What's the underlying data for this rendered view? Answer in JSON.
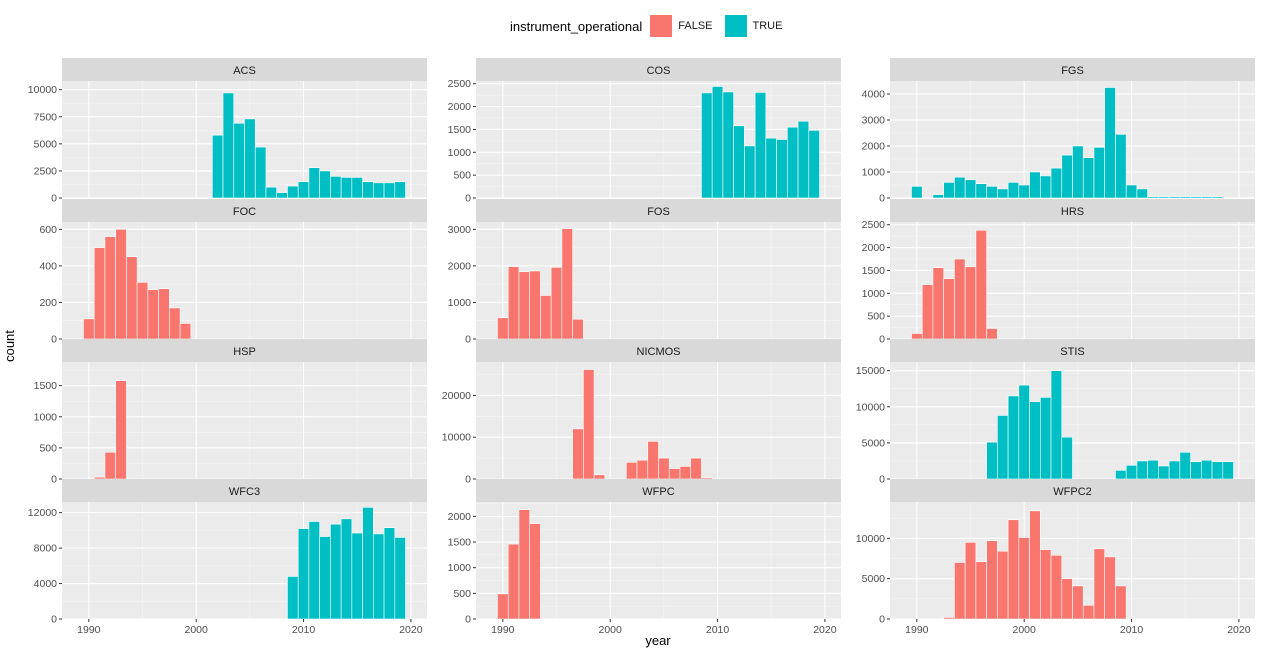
{
  "legend": {
    "title": "instrument_operational",
    "items": [
      {
        "label": "FALSE",
        "color": "#F8766D"
      },
      {
        "label": "TRUE",
        "color": "#00BFC4"
      }
    ]
  },
  "chart_data": {
    "type": "bar",
    "xlabel": "year",
    "ylabel": "count",
    "x_ticks": [
      1990,
      2000,
      2010,
      2020
    ],
    "xlim": [
      1987.5,
      2021.5
    ],
    "panels": [
      {
        "name": "ACS",
        "color": "#00BFC4",
        "ymax": 10800,
        "yticks": [
          0,
          2500,
          5000,
          7500,
          10000
        ],
        "ytick_labels": [
          "0",
          "2500",
          "5000",
          "7500",
          "10000"
        ],
        "x": [
          2002,
          2003,
          2004,
          2005,
          2006,
          2007,
          2008,
          2009,
          2010,
          2011,
          2012,
          2013,
          2014,
          2015,
          2016,
          2017,
          2018,
          2019
        ],
        "y": [
          5800,
          9700,
          6900,
          7300,
          4700,
          1000,
          500,
          1100,
          1500,
          2800,
          2500,
          2000,
          1900,
          1900,
          1500,
          1400,
          1400,
          1500
        ]
      },
      {
        "name": "COS",
        "color": "#00BFC4",
        "ymax": 2560,
        "yticks": [
          0,
          500,
          1000,
          1500,
          2000,
          2500
        ],
        "ytick_labels": [
          "0",
          "500",
          "1000",
          "1500",
          "2000",
          "2500"
        ],
        "x": [
          2009,
          2010,
          2011,
          2012,
          2013,
          2014,
          2015,
          2016,
          2017,
          2018,
          2019
        ],
        "y": [
          2300,
          2440,
          2320,
          1580,
          1140,
          2310,
          1310,
          1280,
          1550,
          1680,
          1480
        ]
      },
      {
        "name": "FGS",
        "color": "#00BFC4",
        "ymax": 4500,
        "yticks": [
          0,
          1000,
          2000,
          3000,
          4000
        ],
        "ytick_labels": [
          "0",
          "1000",
          "2000",
          "3000",
          "4000"
        ],
        "x": [
          1990,
          1992,
          1993,
          1994,
          1995,
          1996,
          1997,
          1998,
          1999,
          2000,
          2001,
          2002,
          2003,
          2004,
          2005,
          2006,
          2007,
          2008,
          2009,
          2010,
          2011,
          2012,
          2013,
          2014,
          2015,
          2016,
          2017,
          2018
        ],
        "y": [
          450,
          130,
          600,
          800,
          700,
          550,
          450,
          350,
          600,
          500,
          1000,
          850,
          1150,
          1650,
          2000,
          1550,
          1950,
          4250,
          2450,
          500,
          350,
          50,
          50,
          50,
          50,
          50,
          50,
          50
        ]
      },
      {
        "name": "FOC",
        "color": "#F8766D",
        "ymax": 640,
        "yticks": [
          0,
          200,
          400,
          600
        ],
        "ytick_labels": [
          "0",
          "200",
          "400",
          "600"
        ],
        "x": [
          1990,
          1991,
          1992,
          1993,
          1994,
          1995,
          1996,
          1997,
          1998,
          1999
        ],
        "y": [
          110,
          500,
          560,
          600,
          450,
          310,
          270,
          275,
          170,
          85
        ]
      },
      {
        "name": "FOS",
        "color": "#F8766D",
        "ymax": 3200,
        "yticks": [
          0,
          1000,
          2000,
          3000
        ],
        "ytick_labels": [
          "0",
          "1000",
          "2000",
          "3000"
        ],
        "x": [
          1990,
          1991,
          1992,
          1993,
          1994,
          1995,
          1996,
          1997
        ],
        "y": [
          580,
          1980,
          1840,
          1860,
          1190,
          1960,
          3020,
          540
        ]
      },
      {
        "name": "HRS",
        "color": "#F8766D",
        "ymax": 2560,
        "yticks": [
          0,
          500,
          1000,
          1500,
          2000,
          2500
        ],
        "ytick_labels": [
          "0",
          "500",
          "1000",
          "1500",
          "2000",
          "2500"
        ],
        "x": [
          1990,
          1991,
          1992,
          1993,
          1994,
          1995,
          1996,
          1997
        ],
        "y": [
          120,
          1190,
          1560,
          1320,
          1750,
          1580,
          2380,
          230
        ]
      },
      {
        "name": "HSP",
        "color": "#F8766D",
        "ymax": 1880,
        "yticks": [
          0,
          500,
          1000,
          1500
        ],
        "ytick_labels": [
          "0",
          "500",
          "1000",
          "1500"
        ],
        "x": [
          1991,
          1992,
          1993
        ],
        "y": [
          30,
          430,
          1580
        ]
      },
      {
        "name": "NICMOS",
        "color": "#F8766D",
        "ymax": 28000,
        "yticks": [
          0,
          10000,
          20000
        ],
        "ytick_labels": [
          "0",
          "10000",
          "20000"
        ],
        "x": [
          1997,
          1998,
          1999,
          2002,
          2003,
          2004,
          2005,
          2006,
          2007,
          2008,
          2009
        ],
        "y": [
          12000,
          26200,
          1000,
          4000,
          4500,
          9000,
          5000,
          2500,
          3000,
          5000,
          300
        ]
      },
      {
        "name": "STIS",
        "color": "#00BFC4",
        "ymax": 16200,
        "yticks": [
          0,
          5000,
          10000,
          15000
        ],
        "ytick_labels": [
          "0",
          "5000",
          "10000",
          "15000"
        ],
        "x": [
          1997,
          1998,
          1999,
          2000,
          2001,
          2002,
          2003,
          2004,
          2009,
          2010,
          2011,
          2012,
          2013,
          2014,
          2015,
          2016,
          2017,
          2018,
          2019
        ],
        "y": [
          5100,
          8800,
          11500,
          13000,
          10700,
          11300,
          15000,
          5800,
          1200,
          1900,
          2500,
          2600,
          1800,
          2500,
          3700,
          2400,
          2600,
          2400,
          2400
        ]
      },
      {
        "name": "WFC3",
        "color": "#00BFC4",
        "ymax": 13200,
        "yticks": [
          0,
          4000,
          8000,
          12000
        ],
        "ytick_labels": [
          "0",
          "4000",
          "8000",
          "12000"
        ],
        "x": [
          2009,
          2010,
          2011,
          2012,
          2013,
          2014,
          2015,
          2016,
          2017,
          2018,
          2019
        ],
        "y": [
          4800,
          10200,
          11000,
          9300,
          10700,
          11300,
          9700,
          12600,
          9600,
          10300,
          9200
        ]
      },
      {
        "name": "WFPC",
        "color": "#F8766D",
        "ymax": 2280,
        "yticks": [
          0,
          500,
          1000,
          1500,
          2000
        ],
        "ytick_labels": [
          "0",
          "500",
          "1000",
          "1500",
          "2000"
        ],
        "x": [
          1990,
          1991,
          1992,
          1993
        ],
        "y": [
          490,
          1460,
          2130,
          1860
        ]
      },
      {
        "name": "WFPC2",
        "color": "#F8766D",
        "ymax": 14500,
        "yticks": [
          0,
          5000,
          10000
        ],
        "ytick_labels": [
          "0",
          "5000",
          "10000"
        ],
        "x": [
          1993,
          1994,
          1995,
          1996,
          1997,
          1998,
          1999,
          2000,
          2001,
          2002,
          2003,
          2004,
          2005,
          2006,
          2007,
          2008,
          2009
        ],
        "y": [
          200,
          7000,
          9500,
          7100,
          9700,
          8400,
          12300,
          10100,
          13400,
          8600,
          7900,
          5000,
          4100,
          1700,
          8700,
          7700,
          4100
        ]
      }
    ]
  }
}
